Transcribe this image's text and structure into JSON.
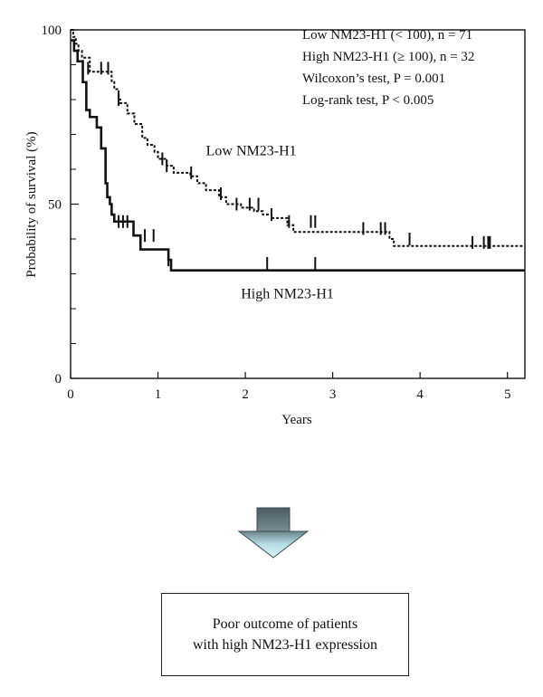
{
  "chart_data": {
    "type": "line",
    "xlabel": "Years",
    "ylabel": "Probability of survival (%)",
    "xlim": [
      0,
      5.2
    ],
    "ylim": [
      0,
      100
    ],
    "x_ticks": [
      0,
      1,
      2,
      3,
      4,
      5
    ],
    "y_ticks": [
      0,
      50,
      100
    ],
    "y_minor_ticks": [
      10,
      20,
      30,
      40,
      60,
      70,
      80,
      90
    ],
    "grid": false,
    "legend": {
      "position": "top-right",
      "lines": [
        "Low NM23-H1 (< 100), n = 71",
        "High NM23-H1 (≥ 100), n = 32",
        "Wilcoxon’s test, P = 0.001",
        "Log-rank test, P < 0.005"
      ]
    },
    "series": [
      {
        "name": "Low NM23-H1",
        "style": "dotted",
        "steps": [
          [
            0,
            100
          ],
          [
            0.03,
            98
          ],
          [
            0.06,
            96
          ],
          [
            0.09,
            94
          ],
          [
            0.13,
            92
          ],
          [
            0.22,
            88
          ],
          [
            0.47,
            85
          ],
          [
            0.5,
            83
          ],
          [
            0.55,
            80
          ],
          [
            0.57,
            79
          ],
          [
            0.65,
            76
          ],
          [
            0.73,
            73
          ],
          [
            0.82,
            69
          ],
          [
            0.88,
            67
          ],
          [
            0.96,
            65
          ],
          [
            1.0,
            63
          ],
          [
            1.1,
            61
          ],
          [
            1.18,
            59
          ],
          [
            1.37,
            58
          ],
          [
            1.45,
            56
          ],
          [
            1.55,
            54
          ],
          [
            1.7,
            52
          ],
          [
            1.78,
            50
          ],
          [
            1.95,
            49
          ],
          [
            2.1,
            48
          ],
          [
            2.2,
            47
          ],
          [
            2.3,
            46
          ],
          [
            2.48,
            44
          ],
          [
            2.55,
            42
          ],
          [
            3.65,
            40
          ],
          [
            3.7,
            38
          ],
          [
            5.2,
            38
          ]
        ],
        "censored": [
          [
            0.2,
            89
          ],
          [
            0.35,
            89
          ],
          [
            0.43,
            89
          ],
          [
            0.55,
            80
          ],
          [
            1.05,
            63
          ],
          [
            1.1,
            61
          ],
          [
            1.38,
            59
          ],
          [
            1.72,
            53
          ],
          [
            1.9,
            50
          ],
          [
            2.05,
            50
          ],
          [
            2.15,
            50
          ],
          [
            2.3,
            47
          ],
          [
            2.5,
            45
          ],
          [
            2.75,
            45
          ],
          [
            2.8,
            45
          ],
          [
            3.35,
            43
          ],
          [
            3.55,
            43
          ],
          [
            3.6,
            43
          ],
          [
            3.88,
            40
          ],
          [
            4.6,
            39
          ],
          [
            4.73,
            39
          ],
          [
            4.78,
            39
          ],
          [
            4.8,
            39
          ]
        ]
      },
      {
        "name": "High NM23-H1",
        "style": "solid",
        "steps": [
          [
            0,
            97
          ],
          [
            0.04,
            94
          ],
          [
            0.08,
            91
          ],
          [
            0.14,
            85
          ],
          [
            0.18,
            77
          ],
          [
            0.22,
            75
          ],
          [
            0.3,
            72
          ],
          [
            0.35,
            66
          ],
          [
            0.4,
            56
          ],
          [
            0.42,
            52
          ],
          [
            0.45,
            50
          ],
          [
            0.47,
            47
          ],
          [
            0.5,
            45
          ],
          [
            0.72,
            41
          ],
          [
            0.8,
            37
          ],
          [
            1.12,
            34
          ],
          [
            1.15,
            31
          ],
          [
            5.2,
            31
          ]
        ],
        "censored": [
          [
            0.55,
            45
          ],
          [
            0.6,
            45
          ],
          [
            0.65,
            45
          ],
          [
            0.85,
            41
          ],
          [
            0.95,
            41
          ],
          [
            1.12,
            34
          ],
          [
            2.25,
            33
          ],
          [
            2.8,
            33
          ]
        ]
      }
    ],
    "annotations": [
      {
        "text": "Low NM23-H1",
        "x": 1.55,
        "y": 64
      },
      {
        "text": "High NM23-H1",
        "x": 1.95,
        "y": 23
      }
    ]
  },
  "outcome": {
    "line1": "Poor outcome of patients",
    "line2": "with high NM23-H1 expression",
    "arrow_color": "#a9d8df"
  }
}
